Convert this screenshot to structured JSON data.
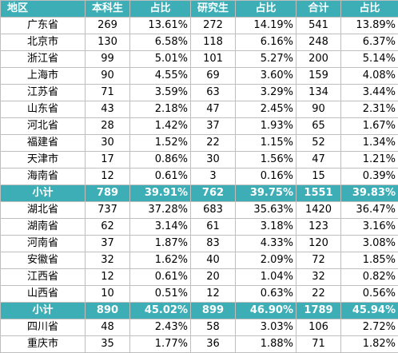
{
  "table": {
    "headers": [
      "地区",
      "本科生",
      "占比",
      "研究生",
      "占比",
      "合计",
      "占比"
    ],
    "groups": [
      {
        "rows": [
          [
            "广东省",
            "269",
            "13.61%",
            "272",
            "14.19%",
            "541",
            "13.89%"
          ],
          [
            "北京市",
            "130",
            "6.58%",
            "118",
            "6.16%",
            "248",
            "6.37%"
          ],
          [
            "浙江省",
            "99",
            "5.01%",
            "101",
            "5.27%",
            "200",
            "5.14%"
          ],
          [
            "上海市",
            "90",
            "4.55%",
            "69",
            "3.60%",
            "159",
            "4.08%"
          ],
          [
            "江苏省",
            "71",
            "3.59%",
            "63",
            "3.29%",
            "134",
            "3.44%"
          ],
          [
            "山东省",
            "43",
            "2.18%",
            "47",
            "2.45%",
            "90",
            "2.31%"
          ],
          [
            "河北省",
            "28",
            "1.42%",
            "37",
            "1.93%",
            "65",
            "1.67%"
          ],
          [
            "福建省",
            "30",
            "1.52%",
            "22",
            "1.15%",
            "52",
            "1.34%"
          ],
          [
            "天津市",
            "17",
            "0.86%",
            "30",
            "1.56%",
            "47",
            "1.21%"
          ],
          [
            "海南省",
            "12",
            "0.61%",
            "3",
            "0.16%",
            "15",
            "0.39%"
          ]
        ],
        "subtotal": [
          "小计",
          "789",
          "39.91%",
          "762",
          "39.75%",
          "1551",
          "39.83%"
        ]
      },
      {
        "rows": [
          [
            "湖北省",
            "737",
            "37.28%",
            "683",
            "35.63%",
            "1420",
            "36.47%"
          ],
          [
            "湖南省",
            "62",
            "3.14%",
            "61",
            "3.18%",
            "123",
            "3.16%"
          ],
          [
            "河南省",
            "37",
            "1.87%",
            "83",
            "4.33%",
            "120",
            "3.08%"
          ],
          [
            "安徽省",
            "32",
            "1.62%",
            "40",
            "2.09%",
            "72",
            "1.85%"
          ],
          [
            "江西省",
            "12",
            "0.61%",
            "20",
            "1.04%",
            "32",
            "0.82%"
          ],
          [
            "山西省",
            "10",
            "0.51%",
            "12",
            "0.63%",
            "22",
            "0.56%"
          ]
        ],
        "subtotal": [
          "小计",
          "890",
          "45.02%",
          "899",
          "46.90%",
          "1789",
          "45.94%"
        ]
      },
      {
        "rows": [
          [
            "四川省",
            "48",
            "2.43%",
            "58",
            "3.03%",
            "106",
            "2.72%"
          ],
          [
            "重庆市",
            "35",
            "1.77%",
            "36",
            "1.88%",
            "71",
            "1.82%"
          ]
        ]
      }
    ]
  },
  "colors": {
    "header_bg": "#3daeb6",
    "subtotal_bg": "#3daeb6",
    "grid": "#bfbfbf"
  }
}
